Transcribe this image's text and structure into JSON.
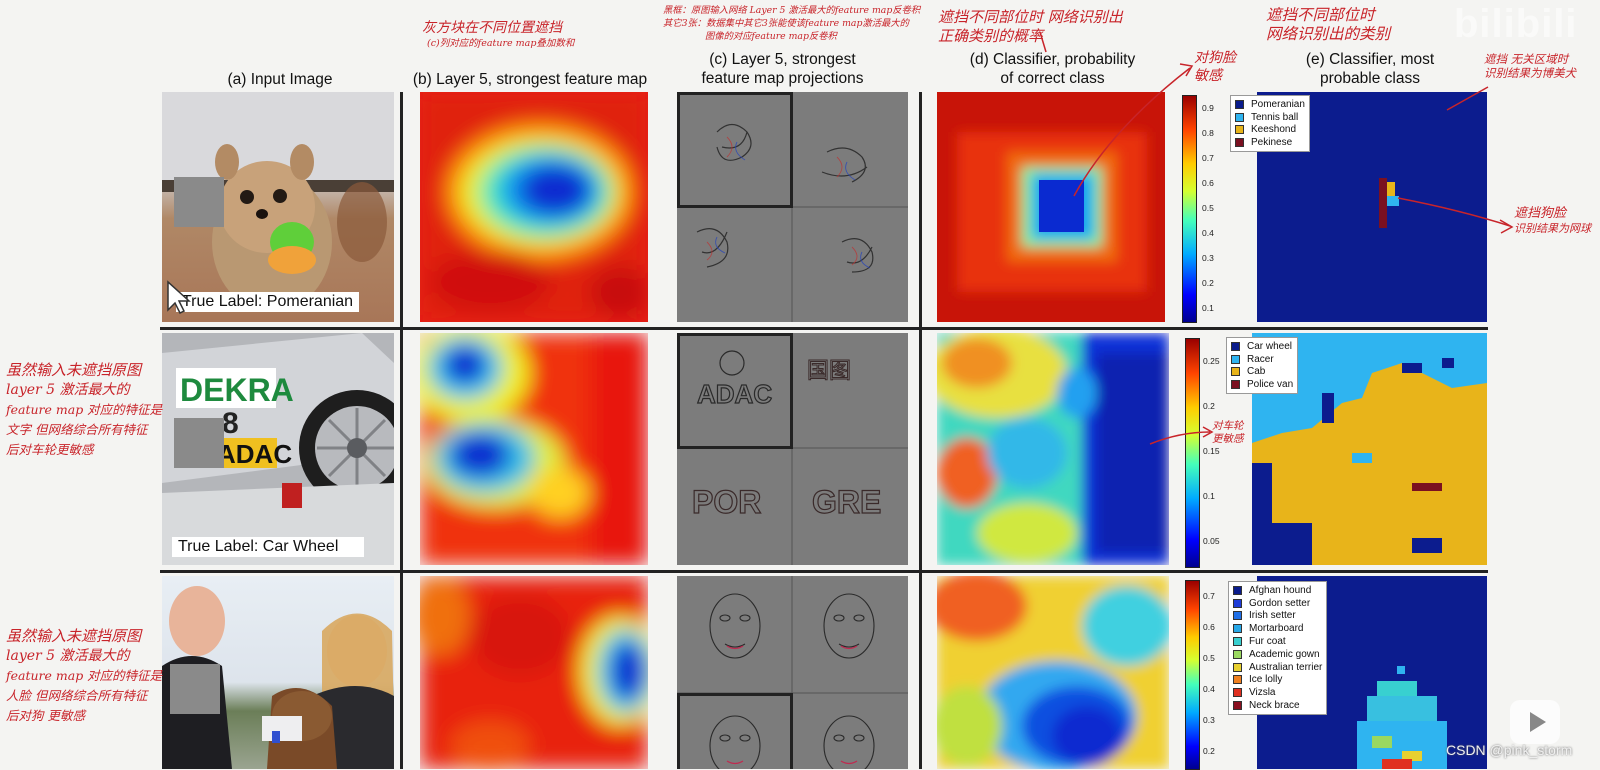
{
  "titles": {
    "a": "(a) Input Image",
    "b": "(b) Layer 5, strongest feature map",
    "c1": "(c) Layer 5, strongest",
    "c2": "feature map projections",
    "d1": "(d) Classifier, probability",
    "d2": "of correct class",
    "e1": "(e) Classifier, most",
    "e2": "probable class"
  },
  "true_labels": {
    "row1": "True Label: Pomeranian",
    "row2": "True Label: Car Wheel"
  },
  "car_image_text": {
    "dekra": "DEKRA",
    "num": "8",
    "adac": "ADAC"
  },
  "projection_text": {
    "row2_tl": "ADAC",
    "row2_tr": "国图",
    "row2_bl": "POR",
    "row2_br": "GRE"
  },
  "legends": {
    "row1": [
      {
        "label": "Pomeranian",
        "color": "#0a1c8c"
      },
      {
        "label": "Tennis ball",
        "color": "#2fb4f0"
      },
      {
        "label": "Keeshond",
        "color": "#e8b41a"
      },
      {
        "label": "Pekinese",
        "color": "#7a1020"
      }
    ],
    "row2": [
      {
        "label": "Car wheel",
        "color": "#0a1c8c"
      },
      {
        "label": "Racer",
        "color": "#2fb4f0"
      },
      {
        "label": "Cab",
        "color": "#e8b41a"
      },
      {
        "label": "Police van",
        "color": "#7a1020"
      }
    ],
    "row3": [
      {
        "label": "Afghan hound",
        "color": "#0a1c8c"
      },
      {
        "label": "Gordon setter",
        "color": "#1e3cd8"
      },
      {
        "label": "Irish setter",
        "color": "#2070e8"
      },
      {
        "label": "Mortarboard",
        "color": "#28a8e8"
      },
      {
        "label": "Fur coat",
        "color": "#38d0d0"
      },
      {
        "label": "Academic gown",
        "color": "#9ad860"
      },
      {
        "label": "Australian terrier",
        "color": "#e8d030"
      },
      {
        "label": "Ice lolly",
        "color": "#f08020"
      },
      {
        "label": "Vizsla",
        "color": "#e03020"
      },
      {
        "label": "Neck brace",
        "color": "#8a1020"
      }
    ]
  },
  "colorbar_ticks": {
    "row1": [
      "0.9",
      "0.8",
      "0.7",
      "0.6",
      "0.5",
      "0.4",
      "0.3",
      "0.2",
      "0.1"
    ],
    "row2": [
      "0.25",
      "0.2",
      "0.15",
      "0.1",
      "0.05"
    ],
    "row3": [
      "0.7",
      "0.6",
      "0.5",
      "0.4",
      "0.3",
      "0.2"
    ]
  },
  "annotations": {
    "top_b_1": "灰方块在不同位置遮挡",
    "top_b_2": "(c)列对应的feature map叠加数和",
    "top_c_1": "黑框：原图输入网络 Layer 5 激活最大的feature map反卷积",
    "top_c_2": "其它3张：数据集中其它3张能使该feature map激活最大的",
    "top_c_3": "图像的对应feature map反卷积",
    "top_d_1": "遮挡不同部位时 网络识别出",
    "top_d_2": "正确类别的概率",
    "top_e_1": "遮挡不同部位时",
    "top_e_2": "网络识别出的类别",
    "dog_face_1": "对狗脸",
    "dog_face_2": "敏感",
    "e_right_1": "遮挡 无关区域时",
    "e_right_2": "识别结果为博美犬",
    "e_face_1": "遮挡狗脸",
    "e_face_2": "识别结果为网球",
    "wheel_1": "对车轮",
    "wheel_2": "更敏感",
    "left2_1": "虽然输入未遮挡原图",
    "left2_2": "layer 5 激活最大的",
    "left2_3": "feature map 对应的特征是",
    "left2_4": "文字  但网络综合所有特征",
    "left2_5": "后对车轮更敏感",
    "left3_1": "虽然输入未遮挡原图",
    "left3_2": "layer 5 激活最大的",
    "left3_3": "feature map 对应的特征是",
    "left3_4": "人脸  但网络综合所有特征",
    "left3_5": "后对狗  更敏感"
  },
  "watermark": {
    "bilibili": "bilibili",
    "csdn": "CSDN @pink_storm"
  }
}
